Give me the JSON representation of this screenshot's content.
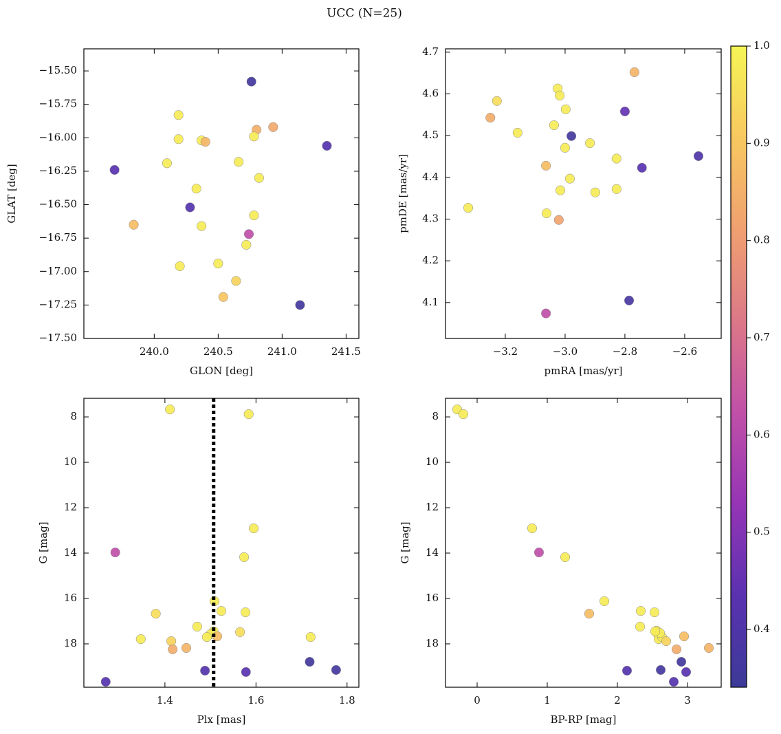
{
  "title": "UCC (N=25)",
  "chart_data": [
    {
      "type": "scatter",
      "xlabel": "GLON [deg]",
      "ylabel": "GLAT [deg]",
      "xlim": [
        239.45,
        241.6
      ],
      "ylim": [
        -17.5,
        -15.335
      ],
      "xticks": [
        {
          "value": 240,
          "label": "240.0"
        },
        240.5,
        {
          "value": 241,
          "label": "241.0"
        },
        241.5
      ],
      "yticks": [
        {
          "value": -17.5,
          "label": "−17.50"
        },
        {
          "value": -17.25,
          "label": "−17.25"
        },
        {
          "value": -17,
          "label": "−17.00"
        },
        {
          "value": -16.75,
          "label": "−16.75"
        },
        {
          "value": -16.5,
          "label": "−16.50"
        },
        {
          "value": -16.25,
          "label": "−16.25"
        },
        {
          "value": -16,
          "label": "−16.00"
        },
        {
          "value": -15.75,
          "label": "−15.75"
        },
        {
          "value": -15.5,
          "label": "−15.50"
        }
      ],
      "x": [
        240.76,
        240.19,
        240.8,
        240.93,
        240.19,
        240.37,
        240.4,
        240.78,
        241.35,
        239.69,
        240.1,
        240.66,
        240.82,
        240.33,
        240.28,
        239.84,
        240.37,
        240.78,
        240.74,
        240.72,
        240.2,
        240.5,
        240.64,
        240.54,
        241.14
      ],
      "y": [
        -15.58,
        -15.83,
        -15.94,
        -15.92,
        -16.01,
        -16.02,
        -16.03,
        -15.99,
        -16.06,
        -16.24,
        -16.19,
        -16.18,
        -16.3,
        -16.38,
        -16.52,
        -16.65,
        -16.66,
        -16.58,
        -16.72,
        -16.8,
        -16.96,
        -16.94,
        -17.07,
        -17.19,
        -17.25
      ],
      "c": [
        0.36,
        0.98,
        0.85,
        0.83,
        0.98,
        0.98,
        0.86,
        0.98,
        0.42,
        0.43,
        0.98,
        0.98,
        0.98,
        0.98,
        0.42,
        0.88,
        0.98,
        0.98,
        0.62,
        0.98,
        0.98,
        0.98,
        0.93,
        0.9,
        0.36
      ]
    },
    {
      "type": "scatter",
      "xlabel": "pmRA [mas/yr]",
      "ylabel": "pmDE [mas/yr]",
      "xlim": [
        -3.4,
        -2.478
      ],
      "ylim": [
        4.014,
        4.708
      ],
      "xticks": [
        {
          "value": -3.2,
          "label": "−3.2"
        },
        {
          "value": -3.0,
          "label": "−3.0"
        },
        {
          "value": -2.8,
          "label": "−2.8"
        },
        {
          "value": -2.6,
          "label": "−2.6"
        }
      ],
      "yticks": [
        4.1,
        4.2,
        4.3,
        4.4,
        4.5,
        4.6,
        4.7
      ],
      "x": [
        -2.768,
        -3.025,
        -3.228,
        -3.018,
        -2.998,
        -2.8,
        -3.25,
        -3.159,
        -2.979,
        -3.037,
        -2.917,
        -3.0,
        -2.554,
        -3.064,
        -2.743,
        -2.828,
        -2.984,
        -3.016,
        -2.828,
        -2.899,
        -3.324,
        -3.062,
        -3.021,
        -2.786,
        -3.064
      ],
      "y": [
        4.652,
        4.613,
        4.583,
        4.596,
        4.563,
        4.558,
        4.543,
        4.507,
        4.499,
        4.525,
        4.482,
        4.471,
        4.451,
        4.428,
        4.423,
        4.445,
        4.397,
        4.369,
        4.372,
        4.364,
        4.327,
        4.314,
        4.298,
        4.105,
        4.074
      ],
      "c": [
        0.86,
        0.98,
        0.95,
        0.98,
        0.98,
        0.45,
        0.84,
        0.98,
        0.37,
        0.98,
        0.98,
        0.98,
        0.4,
        0.88,
        0.43,
        0.98,
        0.98,
        0.98,
        0.98,
        0.98,
        0.98,
        0.98,
        0.82,
        0.38,
        0.62
      ]
    },
    {
      "type": "scatter",
      "xlabel": "Plx [mas]",
      "ylabel": "G [mag]",
      "xlim": [
        1.222,
        1.826
      ],
      "ylim": [
        19.91,
        7.18
      ],
      "vline": 1.507,
      "xticks": [
        1.4,
        1.6,
        1.8
      ],
      "yticks": [
        8,
        10,
        12,
        14,
        16,
        18
      ],
      "x": [
        1.411,
        1.584,
        1.595,
        1.291,
        1.574,
        1.509,
        1.38,
        1.524,
        1.577,
        1.471,
        1.565,
        1.507,
        1.5,
        1.492,
        1.515,
        1.72,
        1.347,
        1.414,
        1.417,
        1.447,
        1.718,
        1.776,
        1.488,
        1.578,
        1.27
      ],
      "y": [
        7.67,
        7.88,
        12.91,
        13.97,
        14.18,
        16.12,
        16.67,
        16.55,
        16.61,
        17.24,
        17.48,
        17.45,
        17.58,
        17.7,
        17.67,
        17.7,
        17.79,
        17.88,
        18.24,
        18.18,
        18.79,
        19.15,
        19.18,
        19.24,
        19.67
      ],
      "c": [
        0.98,
        0.98,
        0.98,
        0.62,
        0.98,
        0.98,
        0.95,
        0.98,
        0.98,
        0.98,
        0.95,
        0.98,
        0.98,
        0.98,
        0.88,
        0.98,
        0.98,
        0.93,
        0.84,
        0.86,
        0.36,
        0.37,
        0.42,
        0.43,
        0.42
      ]
    },
    {
      "type": "scatter",
      "xlabel": "BP-RP [mag]",
      "ylabel": "G [mag]",
      "xlim": [
        -0.451,
        3.48
      ],
      "ylim": [
        19.91,
        7.18
      ],
      "xticks": [
        0,
        1,
        2,
        3
      ],
      "yticks": [
        8,
        10,
        12,
        14,
        16,
        18
      ],
      "x": [
        -0.284,
        -0.196,
        0.784,
        0.882,
        1.255,
        1.814,
        1.598,
        2.333,
        2.529,
        2.324,
        2.559,
        2.578,
        2.588,
        2.637,
        2.696,
        2.951,
        3.304,
        2.843,
        2.912,
        2.618,
        2.137,
        2.98,
        2.804,
        2.608,
        2.539
      ],
      "y": [
        7.67,
        7.88,
        12.91,
        13.97,
        14.18,
        16.12,
        16.67,
        16.55,
        16.61,
        17.24,
        17.42,
        17.58,
        17.79,
        17.7,
        17.88,
        17.67,
        18.18,
        18.24,
        18.79,
        19.15,
        19.18,
        19.24,
        19.67,
        17.52,
        17.45
      ],
      "c": [
        0.98,
        0.98,
        0.98,
        0.62,
        0.98,
        0.98,
        0.88,
        0.98,
        0.98,
        0.98,
        0.98,
        0.98,
        0.98,
        0.98,
        0.93,
        0.88,
        0.86,
        0.84,
        0.36,
        0.37,
        0.42,
        0.43,
        0.42,
        0.98,
        0.98
      ]
    },
    {
      "type": "colorbar",
      "clim": [
        0.3406,
        1.0
      ],
      "ticks": [
        0.4,
        0.5,
        0.6,
        0.7,
        0.8,
        0.9,
        {
          "value": 1.0,
          "label": "1.0"
        }
      ],
      "colors": [
        "#3c3a98",
        "#5a32b0",
        "#9535b5",
        "#c050a8",
        "#dc7888",
        "#f0a070",
        "#f8c860",
        "#f5f555"
      ]
    }
  ]
}
